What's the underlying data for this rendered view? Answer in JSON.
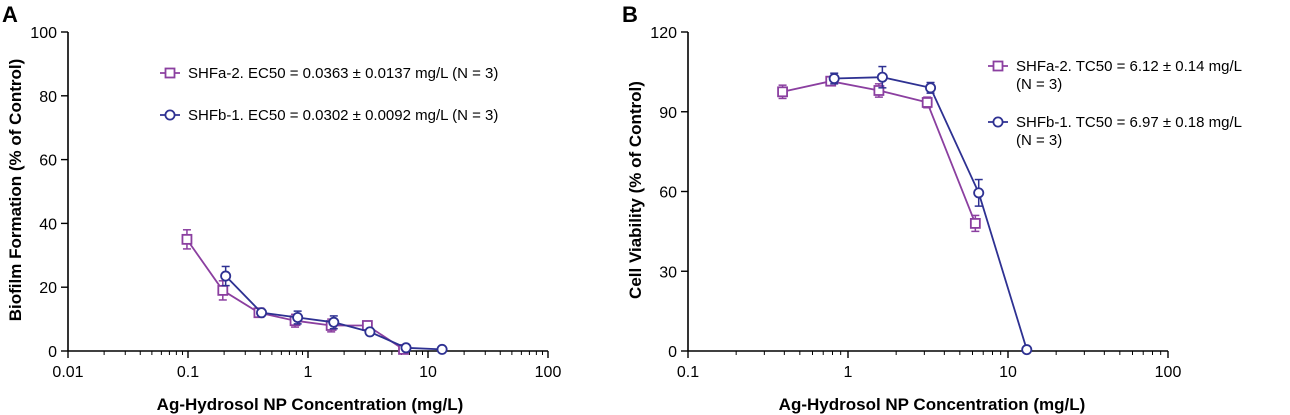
{
  "chart_data": [
    {
      "panel_label": "A",
      "type": "line",
      "xscale": "log",
      "xlabel": "Ag-Hydrosol NP  Concentration (mg/L)",
      "ylabel": "Biofilm  Formation (% of Control)",
      "xlim": [
        0.01,
        100
      ],
      "ylim": [
        0,
        100
      ],
      "xticks": [
        0.01,
        0.1,
        1,
        10,
        100
      ],
      "xtick_labels": [
        "0.01",
        "0.1",
        "1",
        "10",
        "100"
      ],
      "yticks": [
        0,
        20,
        40,
        60,
        80,
        100
      ],
      "ytick_labels": [
        "0",
        "20",
        "40",
        "60",
        "80",
        "100"
      ],
      "legend_position": "top-right",
      "series": [
        {
          "name": "SHFa-2. EC50 = 0.0363 ± 0.0137 mg/L (N = 3)",
          "legend_lines": [
            "SHFa-2. EC50 = 0.0363 ± 0.0137 mg/L (N = 3)"
          ],
          "marker": "square",
          "color": "#8B3FA0",
          "x": [
            0.098,
            0.195,
            0.39,
            0.78,
            1.56,
            3.125,
            6.25
          ],
          "y": [
            35,
            19,
            12,
            9.5,
            8,
            8,
            0.5
          ],
          "err": [
            3,
            3,
            1,
            2,
            2,
            1,
            0.5
          ]
        },
        {
          "name": "SHFb-1. EC50 = 0.0302 ± 0.0092 mg/L (N = 3)",
          "legend_lines": [
            "SHFb-1. EC50 = 0.0302 ± 0.0092 mg/L (N = 3)"
          ],
          "marker": "circle",
          "color": "#2E3192",
          "x": [
            0.206,
            0.41,
            0.82,
            1.64,
            3.28,
            6.56,
            13.1
          ],
          "y": [
            23.5,
            12,
            10.5,
            9,
            6,
            1,
            0.5
          ],
          "err": [
            3,
            1,
            2,
            2,
            1,
            0.5,
            0.3
          ]
        }
      ]
    },
    {
      "panel_label": "B",
      "type": "line",
      "xscale": "log",
      "xlabel": "Ag-Hydrosol NP  Concentration (mg/L)",
      "ylabel": "Cell Viability (% of Control)",
      "xlim": [
        0.1,
        100
      ],
      "ylim": [
        0,
        120
      ],
      "xticks": [
        0.1,
        1,
        10,
        100
      ],
      "xtick_labels": [
        "0.1",
        "1",
        "10",
        "100"
      ],
      "yticks": [
        0,
        30,
        60,
        90,
        120
      ],
      "ytick_labels": [
        "0",
        "30",
        "60",
        "90",
        "120"
      ],
      "legend_position": "top-right",
      "series": [
        {
          "name": "SHFa-2. TC50 = 6.12 ± 0.14 mg/L (N = 3)",
          "legend_lines": [
            "SHFa-2. TC50 = 6.12 ± 0.14 mg/L",
            "(N = 3)"
          ],
          "marker": "square",
          "color": "#8B3FA0",
          "x": [
            0.39,
            0.78,
            1.56,
            3.125,
            6.25
          ],
          "y": [
            97.5,
            101.5,
            98,
            93.5,
            48
          ],
          "err": [
            2.5,
            1.5,
            2.5,
            2,
            3
          ]
        },
        {
          "name": "SHFb-1. TC50 = 6.97 ± 0.18 mg/L (N = 3)",
          "legend_lines": [
            "SHFb-1. TC50 = 6.97 ± 0.18 mg/L",
            "(N = 3)"
          ],
          "marker": "circle",
          "color": "#2E3192",
          "x": [
            0.82,
            1.64,
            3.28,
            6.56,
            13.1
          ],
          "y": [
            102.5,
            103,
            99,
            59.5,
            0.5
          ],
          "err": [
            2,
            4,
            2,
            5,
            0.5
          ]
        }
      ]
    }
  ]
}
